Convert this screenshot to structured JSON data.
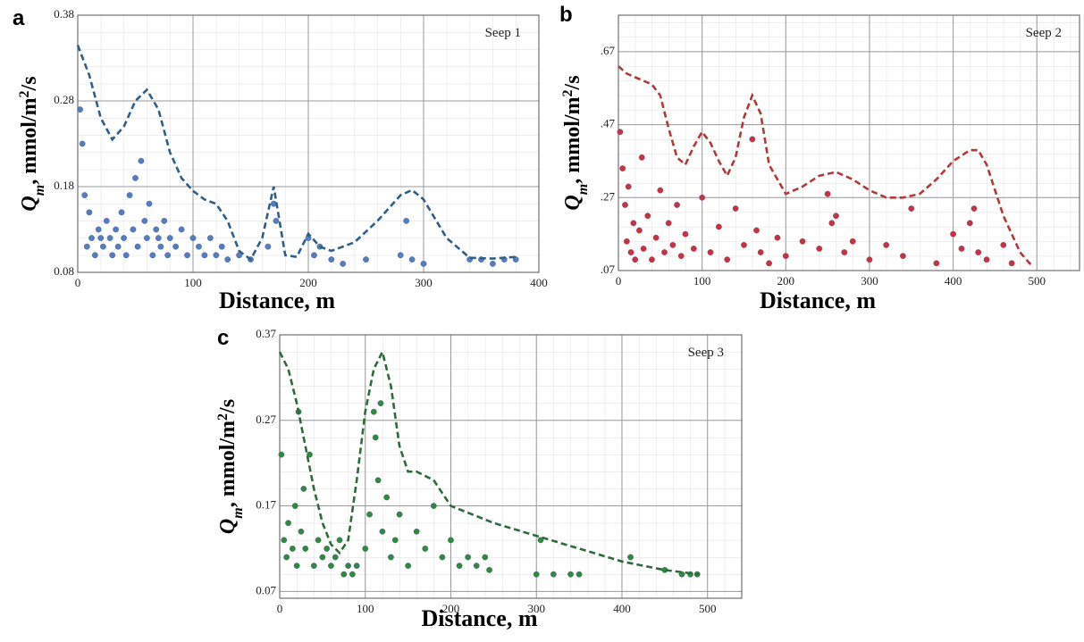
{
  "chart_data": [
    {
      "type": "scatter",
      "panel_label": "a",
      "annotation": "Seep 1",
      "x_label": "Distance, m",
      "y_label": [
        "Q",
        "m",
        ", mmol/m",
        "2",
        "/s"
      ],
      "xlim": [
        0,
        400
      ],
      "ylim": [
        0.08,
        0.38
      ],
      "xticks": [
        0,
        100,
        200,
        300,
        400
      ],
      "yticks": [
        0.08,
        0.18,
        0.28,
        0.38
      ],
      "grid": true,
      "series": [
        {
          "mode": "markers",
          "color": "#4f7fbf",
          "x": [
            2,
            4,
            6,
            8,
            10,
            12,
            15,
            18,
            20,
            22,
            25,
            28,
            30,
            33,
            35,
            38,
            40,
            42,
            45,
            48,
            50,
            52,
            55,
            58,
            60,
            62,
            65,
            68,
            70,
            72,
            75,
            78,
            80,
            85,
            90,
            95,
            100,
            105,
            110,
            115,
            120,
            125,
            130,
            140,
            150,
            165,
            170,
            172,
            200,
            205,
            210,
            220,
            230,
            250,
            280,
            285,
            290,
            300,
            340,
            350,
            360,
            370,
            380
          ],
          "values": [
            0.27,
            0.23,
            0.17,
            0.11,
            0.15,
            0.12,
            0.1,
            0.13,
            0.12,
            0.11,
            0.14,
            0.12,
            0.1,
            0.13,
            0.11,
            0.15,
            0.12,
            0.1,
            0.17,
            0.13,
            0.19,
            0.11,
            0.21,
            0.14,
            0.12,
            0.16,
            0.1,
            0.13,
            0.12,
            0.11,
            0.14,
            0.1,
            0.12,
            0.11,
            0.13,
            0.1,
            0.12,
            0.11,
            0.1,
            0.12,
            0.1,
            0.11,
            0.095,
            0.1,
            0.095,
            0.11,
            0.16,
            0.14,
            0.12,
            0.1,
            0.11,
            0.095,
            0.09,
            0.095,
            0.1,
            0.14,
            0.095,
            0.09,
            0.095,
            0.095,
            0.09,
            0.095,
            0.095
          ]
        },
        {
          "mode": "dashed-line",
          "color": "#2f5f88",
          "x": [
            0,
            10,
            20,
            30,
            40,
            50,
            60,
            70,
            80,
            90,
            100,
            110,
            120,
            130,
            140,
            150,
            160,
            170,
            180,
            190,
            200,
            210,
            220,
            240,
            260,
            280,
            290,
            300,
            320,
            340,
            360,
            380
          ],
          "values": [
            0.345,
            0.31,
            0.26,
            0.235,
            0.25,
            0.28,
            0.293,
            0.27,
            0.22,
            0.19,
            0.175,
            0.165,
            0.16,
            0.14,
            0.105,
            0.095,
            0.12,
            0.18,
            0.1,
            0.098,
            0.125,
            0.11,
            0.105,
            0.115,
            0.14,
            0.17,
            0.176,
            0.165,
            0.12,
            0.097,
            0.096,
            0.098
          ]
        }
      ]
    },
    {
      "type": "scatter",
      "panel_label": "b",
      "annotation": "Seep 2",
      "x_label": "Distance, m",
      "y_label": [
        "Q",
        "m",
        ", mmol/m",
        "2",
        "/s"
      ],
      "xlim": [
        0,
        551
      ],
      "ylim": [
        0.07,
        0.77
      ],
      "xticks": [
        0,
        100,
        200,
        300,
        400,
        500
      ],
      "yticks": [
        {
          "value": 0.07,
          "label": ".07"
        },
        {
          "value": 0.27,
          "label": ".27"
        },
        {
          "value": 0.47,
          "label": ".47"
        },
        {
          "value": 0.67,
          "label": ".67"
        }
      ],
      "grid": true,
      "series": [
        {
          "mode": "markers",
          "color": "#c8323c",
          "x": [
            2,
            5,
            8,
            10,
            12,
            15,
            18,
            20,
            25,
            28,
            30,
            35,
            40,
            45,
            50,
            55,
            60,
            65,
            70,
            75,
            80,
            90,
            100,
            110,
            120,
            130,
            140,
            150,
            160,
            165,
            170,
            180,
            190,
            200,
            220,
            240,
            250,
            255,
            260,
            270,
            280,
            300,
            320,
            340,
            350,
            380,
            400,
            410,
            420,
            425,
            430,
            440,
            460,
            470
          ],
          "values": [
            0.45,
            0.35,
            0.25,
            0.15,
            0.3,
            0.12,
            0.2,
            0.1,
            0.18,
            0.38,
            0.13,
            0.22,
            0.1,
            0.16,
            0.29,
            0.12,
            0.2,
            0.14,
            0.25,
            0.11,
            0.17,
            0.13,
            0.27,
            0.12,
            0.19,
            0.1,
            0.24,
            0.14,
            0.43,
            0.18,
            0.12,
            0.09,
            0.16,
            0.11,
            0.15,
            0.13,
            0.28,
            0.2,
            0.22,
            0.12,
            0.15,
            0.1,
            0.14,
            0.11,
            0.24,
            0.09,
            0.17,
            0.13,
            0.2,
            0.24,
            0.12,
            0.1,
            0.14,
            0.09
          ]
        },
        {
          "mode": "dashed-line",
          "color": "#b03a3a",
          "x": [
            0,
            10,
            20,
            30,
            40,
            50,
            60,
            70,
            80,
            90,
            100,
            110,
            120,
            130,
            140,
            150,
            160,
            170,
            180,
            200,
            220,
            240,
            260,
            280,
            300,
            320,
            340,
            360,
            380,
            400,
            420,
            430,
            440,
            460,
            480,
            495
          ],
          "values": [
            0.63,
            0.61,
            0.6,
            0.59,
            0.58,
            0.55,
            0.46,
            0.38,
            0.36,
            0.41,
            0.45,
            0.42,
            0.37,
            0.33,
            0.38,
            0.49,
            0.55,
            0.5,
            0.36,
            0.28,
            0.3,
            0.33,
            0.34,
            0.32,
            0.29,
            0.27,
            0.27,
            0.28,
            0.32,
            0.37,
            0.4,
            0.4,
            0.36,
            0.22,
            0.12,
            0.08
          ]
        }
      ]
    },
    {
      "type": "scatter",
      "panel_label": "c",
      "annotation": "Seep 3",
      "x_label": "Distance, m",
      "y_label": [
        "Q",
        "m",
        ", mmol/m",
        "2",
        "/s"
      ],
      "xlim": [
        0,
        540
      ],
      "ylim": [
        0.062,
        0.37
      ],
      "xticks": [
        0,
        100,
        200,
        300,
        400,
        500
      ],
      "yticks": [
        0.07,
        0.17,
        0.27,
        0.37
      ],
      "grid": true,
      "series": [
        {
          "mode": "markers",
          "color": "#2e8b3e",
          "x": [
            2,
            5,
            8,
            10,
            15,
            18,
            20,
            22,
            25,
            28,
            30,
            35,
            40,
            45,
            50,
            55,
            60,
            65,
            70,
            75,
            80,
            85,
            90,
            100,
            105,
            110,
            112,
            115,
            118,
            120,
            125,
            130,
            135,
            140,
            150,
            160,
            170,
            180,
            190,
            200,
            210,
            220,
            230,
            240,
            245,
            300,
            305,
            320,
            340,
            350,
            410,
            450,
            470,
            480,
            488
          ],
          "values": [
            0.23,
            0.13,
            0.11,
            0.15,
            0.12,
            0.17,
            0.1,
            0.28,
            0.14,
            0.19,
            0.12,
            0.23,
            0.1,
            0.13,
            0.11,
            0.12,
            0.1,
            0.11,
            0.13,
            0.09,
            0.1,
            0.09,
            0.1,
            0.12,
            0.16,
            0.28,
            0.25,
            0.2,
            0.29,
            0.14,
            0.18,
            0.11,
            0.13,
            0.16,
            0.1,
            0.14,
            0.12,
            0.17,
            0.11,
            0.13,
            0.1,
            0.11,
            0.1,
            0.11,
            0.095,
            0.09,
            0.13,
            0.09,
            0.09,
            0.09,
            0.11,
            0.095,
            0.09,
            0.09,
            0.09
          ]
        },
        {
          "mode": "dashed-line",
          "color": "#2f6b3a",
          "x": [
            0,
            10,
            20,
            30,
            40,
            50,
            60,
            70,
            80,
            90,
            100,
            110,
            120,
            130,
            140,
            150,
            160,
            180,
            200,
            250,
            300,
            350,
            400,
            450,
            490
          ],
          "values": [
            0.35,
            0.33,
            0.29,
            0.24,
            0.19,
            0.15,
            0.125,
            0.115,
            0.13,
            0.2,
            0.28,
            0.33,
            0.35,
            0.31,
            0.24,
            0.21,
            0.21,
            0.2,
            0.17,
            0.15,
            0.135,
            0.12,
            0.105,
            0.095,
            0.09
          ]
        }
      ]
    }
  ]
}
